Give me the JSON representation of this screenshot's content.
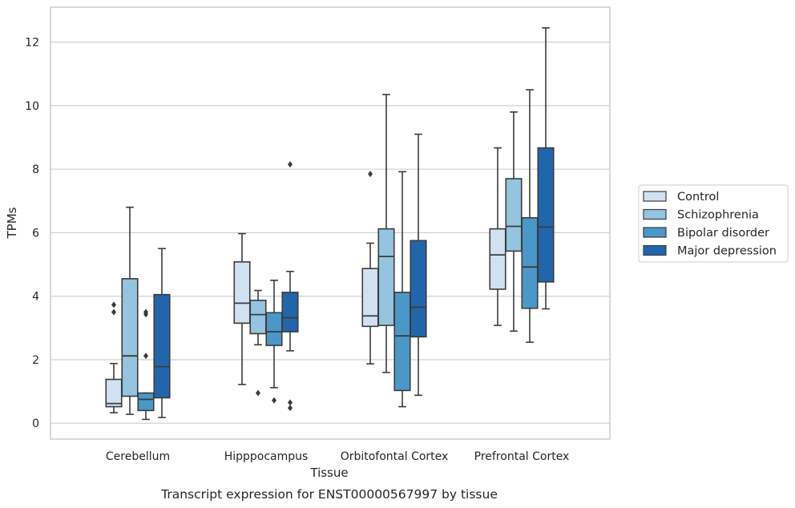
{
  "caption": "Transcript expression for ENST00000567997 by tissue",
  "chart_data": {
    "type": "boxplot",
    "xlabel": "Tissue",
    "ylabel": "TPMs",
    "ylim": [
      -0.5,
      13.1
    ],
    "yticks": [
      0,
      2,
      4,
      6,
      8,
      10,
      12
    ],
    "ytick_labels": [
      "0",
      "2",
      "4",
      "6",
      "8",
      "10",
      "12"
    ],
    "grid": "horizontal",
    "legend_position": "right",
    "categories": [
      "Cerebellum",
      "Hipppocampus",
      "Orbitofontal Cortex",
      "Prefrontal Cortex"
    ],
    "series": [
      {
        "name": "Control",
        "color": "#d0e1f2",
        "boxes": [
          {
            "whislo": 0.33,
            "q1": 0.52,
            "med": 0.62,
            "q3": 1.38,
            "whishi": 1.88,
            "fliers": [
              3.5,
              3.73
            ]
          },
          {
            "whislo": 1.22,
            "q1": 3.15,
            "med": 3.78,
            "q3": 5.08,
            "whishi": 5.97,
            "fliers": []
          },
          {
            "whislo": 1.87,
            "q1": 3.05,
            "med": 3.38,
            "q3": 4.87,
            "whishi": 5.67,
            "fliers": [
              7.85
            ]
          },
          {
            "whislo": 3.08,
            "q1": 4.22,
            "med": 5.3,
            "q3": 6.12,
            "whishi": 8.67,
            "fliers": []
          }
        ]
      },
      {
        "name": "Schizophrenia",
        "color": "#94c4df",
        "boxes": [
          {
            "whislo": 0.28,
            "q1": 0.85,
            "med": 2.12,
            "q3": 4.55,
            "whishi": 6.8,
            "fliers": []
          },
          {
            "whislo": 2.47,
            "q1": 2.82,
            "med": 3.42,
            "q3": 3.87,
            "whishi": 4.18,
            "fliers": [
              0.95
            ]
          },
          {
            "whislo": 1.6,
            "q1": 3.08,
            "med": 5.25,
            "q3": 6.12,
            "whishi": 10.35,
            "fliers": []
          },
          {
            "whislo": 2.9,
            "q1": 5.42,
            "med": 6.2,
            "q3": 7.7,
            "whishi": 9.8,
            "fliers": []
          }
        ]
      },
      {
        "name": "Bipolar disorder",
        "color": "#4a98c9",
        "boxes": [
          {
            "whislo": 0.12,
            "q1": 0.4,
            "med": 0.75,
            "q3": 0.95,
            "whishi": 0.95,
            "fliers": [
              2.12,
              3.43,
              3.5
            ]
          },
          {
            "whislo": 1.12,
            "q1": 2.45,
            "med": 2.88,
            "q3": 3.48,
            "whishi": 4.5,
            "fliers": [
              0.72
            ]
          },
          {
            "whislo": 0.52,
            "q1": 1.03,
            "med": 2.75,
            "q3": 4.12,
            "whishi": 7.92,
            "fliers": []
          },
          {
            "whislo": 2.55,
            "q1": 3.62,
            "med": 4.92,
            "q3": 6.47,
            "whishi": 10.5,
            "fliers": []
          }
        ]
      },
      {
        "name": "Major depression",
        "color": "#2166ac",
        "boxes": [
          {
            "whislo": 0.18,
            "q1": 0.8,
            "med": 1.78,
            "q3": 4.05,
            "whishi": 5.5,
            "fliers": []
          },
          {
            "whislo": 2.28,
            "q1": 2.88,
            "med": 3.32,
            "q3": 4.12,
            "whishi": 4.78,
            "fliers": [
              0.48,
              0.65,
              8.15
            ]
          },
          {
            "whislo": 0.88,
            "q1": 2.72,
            "med": 3.65,
            "q3": 5.75,
            "whishi": 9.1,
            "fliers": []
          },
          {
            "whislo": 3.6,
            "q1": 4.45,
            "med": 6.18,
            "q3": 8.67,
            "whishi": 12.45,
            "fliers": []
          }
        ]
      }
    ]
  }
}
